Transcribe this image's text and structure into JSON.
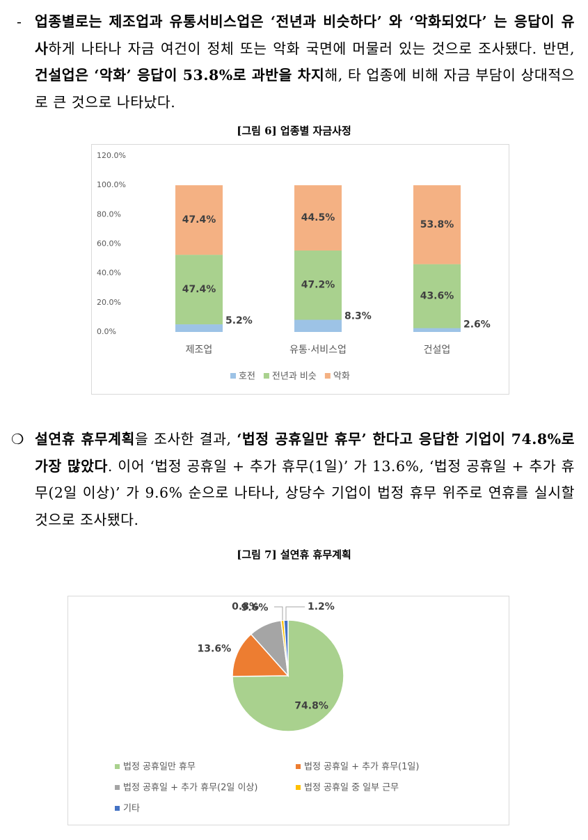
{
  "paragraphs": [
    {
      "bullet": "-",
      "runs": [
        {
          "text": "업종별로는 제조업과 유통서비스업은 ‘전년과 비슷하다’ 와 ‘악화되었다’ 는 응답이 유사",
          "bold": true
        },
        {
          "text": "하게 나타나 자금 여건이 정체 또는 악화 국면에 머물러 있는 것으로 조사됐다. 반면, ",
          "bold": false
        },
        {
          "text": "건설업은 ‘악화’ 응답이 53.8%로 과반을 차지",
          "bold": true
        },
        {
          "text": "해, 타 업종에 비해 자금 부담이 상대적으로 큰 것으로 나타났다.",
          "bold": false
        }
      ]
    },
    {
      "bullet": "❍",
      "runs": [
        {
          "text": "설연휴 휴무계획",
          "bold": true
        },
        {
          "text": "을 조사한 결과, ",
          "bold": false
        },
        {
          "text": "‘법정 공휴일만 휴무’ 한다고 응답한 기업이 74.8%로 가장 많았다",
          "bold": true
        },
        {
          "text": ". 이어 ‘법정 공휴일 + 추가 휴무(1일)’ 가 13.6%, ‘법정 공휴일 + 추가 휴무(2일 이상)’ 가 9.6% 순으로 나타나, 상당수 기업이 법정 휴무 위주로 연휴를 실시할 것으로 조사됐다.",
          "bold": false
        }
      ]
    }
  ],
  "chart_data": [
    {
      "type": "stacked-bar",
      "caption": "[그림 6] 업종별 자금사정",
      "categories": [
        "제조업",
        "유통·서비스업",
        "건설업"
      ],
      "ylim": [
        0,
        120
      ],
      "yticks": [
        {
          "value": 0,
          "label": "0.0%"
        },
        {
          "value": 20,
          "label": "20.0%"
        },
        {
          "value": 40,
          "label": "40.0%"
        },
        {
          "value": 60,
          "label": "60.0%"
        },
        {
          "value": 80,
          "label": "80.0%"
        },
        {
          "value": 100,
          "label": "100.0%"
        },
        {
          "value": 120,
          "label": "120.0%"
        }
      ],
      "series": [
        {
          "name": "호전",
          "color": "#9dc3e6",
          "values": [
            5.2,
            8.3,
            2.6
          ],
          "value_labels": [
            "5.2%",
            "8.3%",
            "2.6%"
          ]
        },
        {
          "name": "전년과 비슷",
          "color": "#a9d18e",
          "values": [
            47.4,
            47.2,
            43.6
          ],
          "value_labels": [
            "47.4%",
            "47.2%",
            "43.6%"
          ]
        },
        {
          "name": "악화",
          "color": "#f4b183",
          "values": [
            47.4,
            44.5,
            53.8
          ],
          "value_labels": [
            "47.4%",
            "44.5%",
            "53.8%"
          ]
        }
      ]
    },
    {
      "type": "pie",
      "caption": "[그림 7] 설연휴 휴무계획",
      "categories": [
        "법정 공휴일만 휴무",
        "법정 공휴일 + 추가 휴무(1일)",
        "법정 공휴일 + 추가 휴무(2일 이상)",
        "법정 공휴일 중 일부 근무",
        "기타"
      ],
      "values": [
        74.8,
        13.6,
        9.6,
        0.8,
        1.2
      ],
      "value_labels": [
        "74.8%",
        "13.6%",
        "9.6%",
        "0.8%",
        "1.2%"
      ],
      "colors": [
        "#a9d18e",
        "#ed7d31",
        "#a5a5a5",
        "#ffc000",
        "#4472c4"
      ]
    }
  ]
}
